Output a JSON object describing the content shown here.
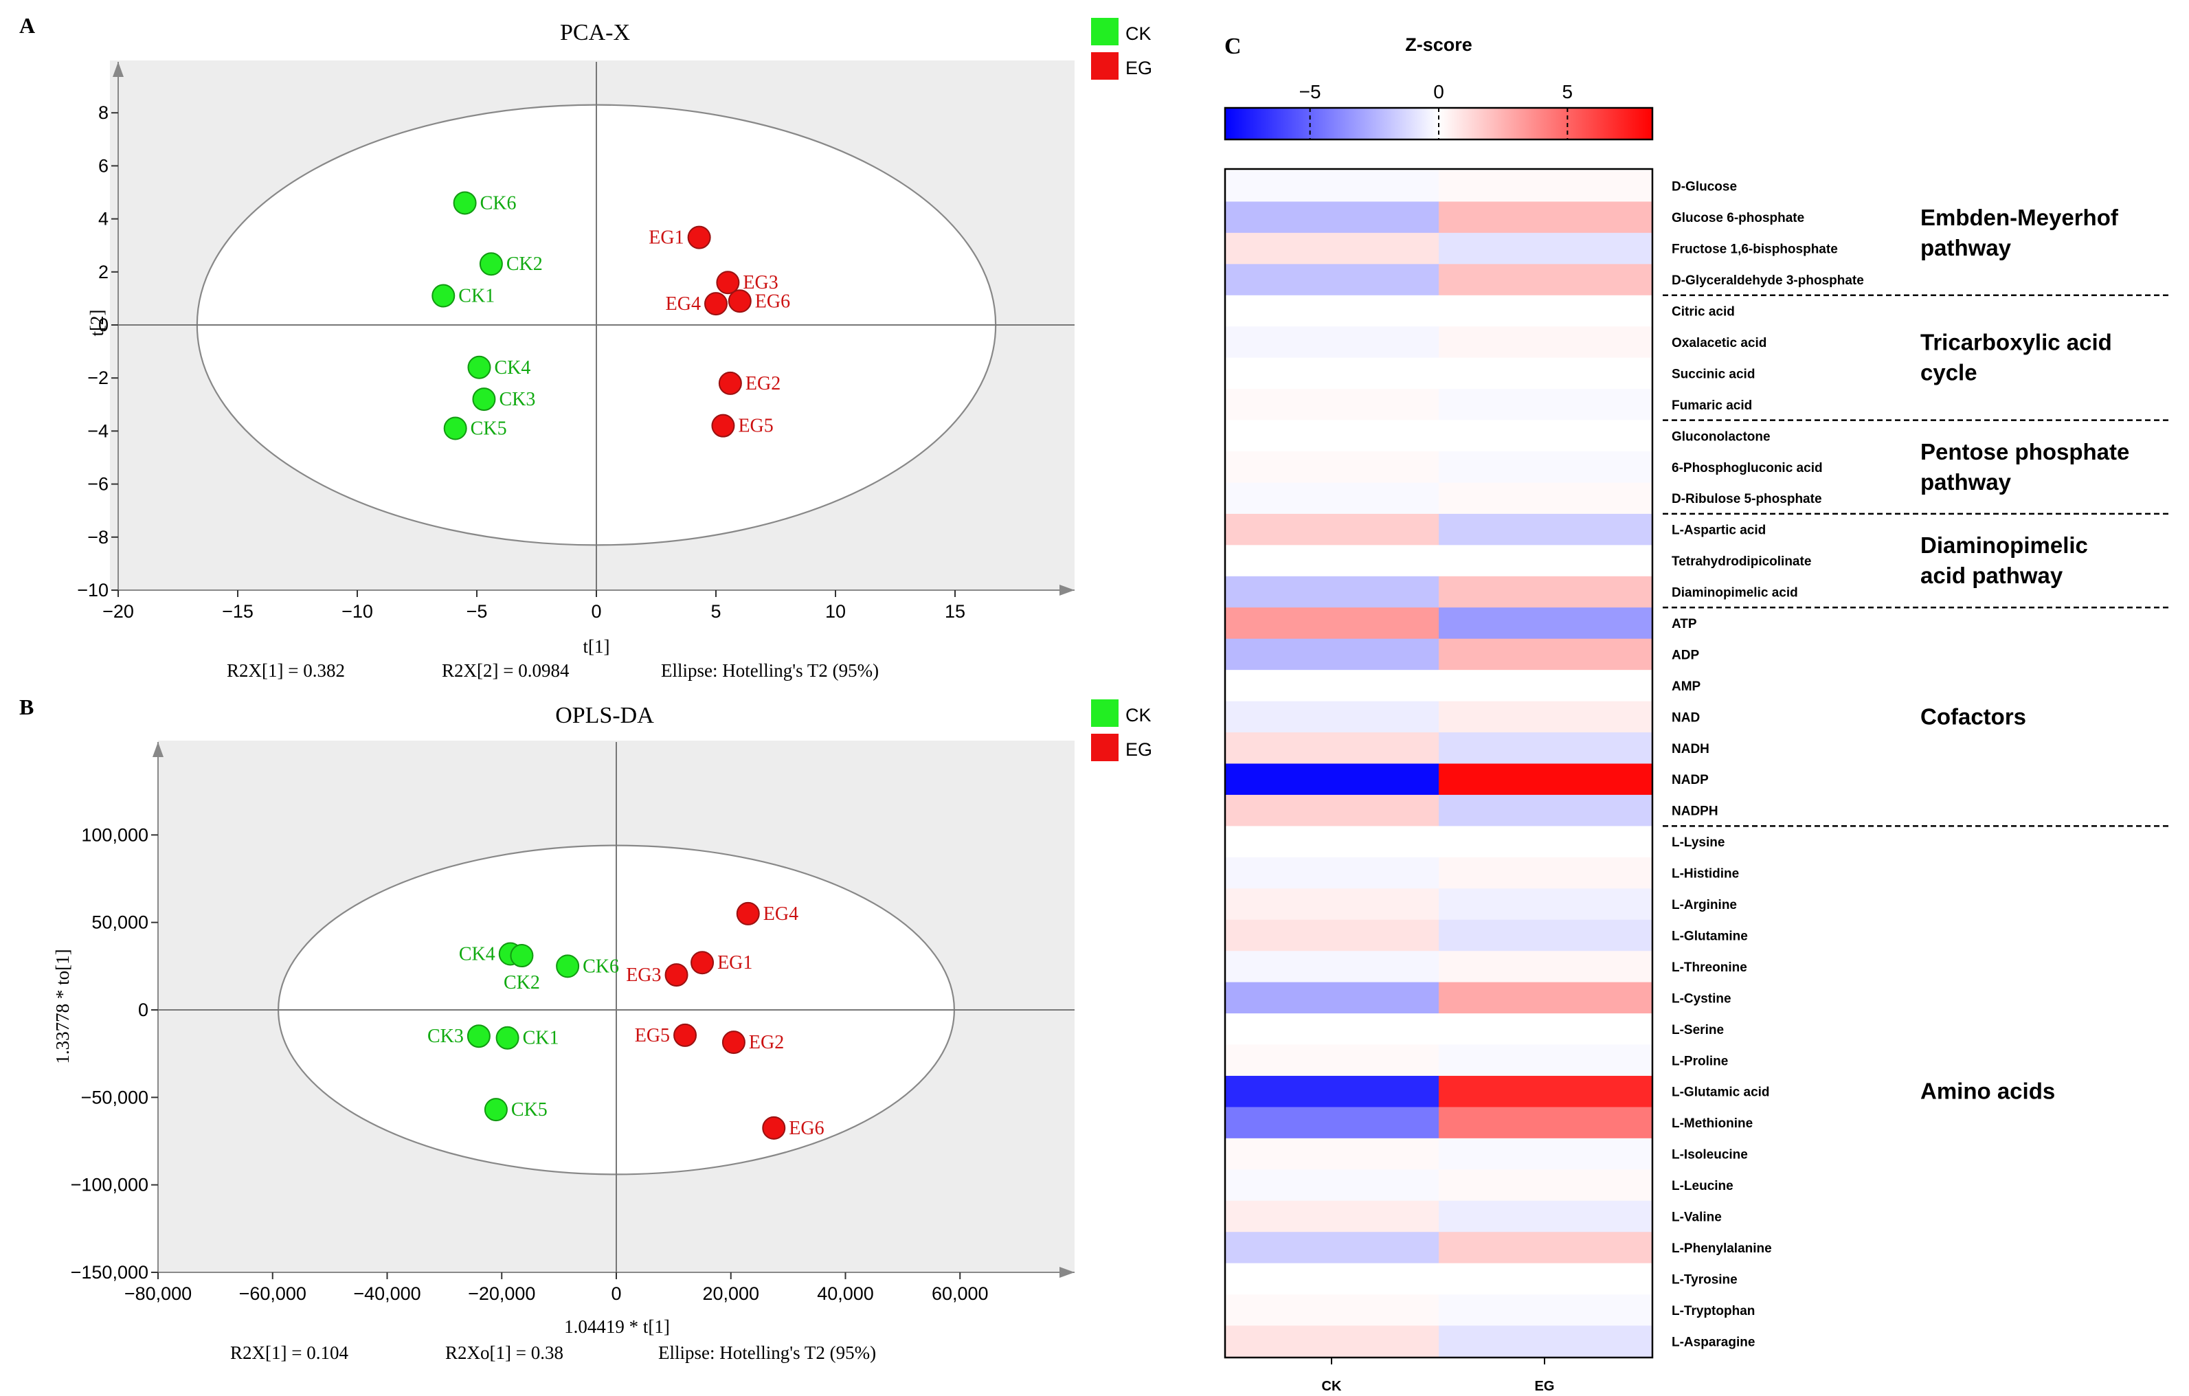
{
  "colors": {
    "ck": "#22ee22",
    "eg": "#ee1111",
    "ck_label": "#11aa11",
    "eg_label": "#cc1111",
    "plot_bg": "#ededed",
    "heat_low": "#0000ff",
    "heat_mid": "#ffffff",
    "heat_high": "#ff0000"
  },
  "chart_data": [
    {
      "panel": "A",
      "type": "scatter",
      "title": "PCA-X",
      "xlabel": "t[1]",
      "ylabel": "t[2]",
      "xlim": [
        -20,
        20
      ],
      "ylim": [
        -10,
        10
      ],
      "xticks": [
        -20,
        -15,
        -10,
        -5,
        0,
        5,
        10,
        15
      ],
      "yticks": [
        -10,
        -8,
        -6,
        -4,
        -2,
        0,
        2,
        4,
        6,
        8
      ],
      "tick_labels_x": [
        "−20",
        "−15",
        "−10",
        "−5",
        "0",
        "5",
        "10",
        "15"
      ],
      "tick_labels_y": [
        "−10",
        "−8",
        "−6",
        "−4",
        "−2",
        "0",
        "2",
        "4",
        "6",
        "8"
      ],
      "ellipse": {
        "cx": 0,
        "cy": 0,
        "rx": 16.7,
        "ry": 8.3
      },
      "legend": [
        "CK",
        "EG"
      ],
      "stats": [
        "R2X[1] = 0.382",
        "R2X[2] = 0.0984",
        "Ellipse: Hotelling's T2 (95%)"
      ],
      "points": [
        {
          "label": "CK6",
          "group": "CK",
          "x": -5.5,
          "y": 4.6,
          "anchor": "right"
        },
        {
          "label": "CK2",
          "group": "CK",
          "x": -4.4,
          "y": 2.3,
          "anchor": "right"
        },
        {
          "label": "CK1",
          "group": "CK",
          "x": -6.4,
          "y": 1.1,
          "anchor": "right"
        },
        {
          "label": "CK4",
          "group": "CK",
          "x": -4.9,
          "y": -1.6,
          "anchor": "right"
        },
        {
          "label": "CK3",
          "group": "CK",
          "x": -4.7,
          "y": -2.8,
          "anchor": "right"
        },
        {
          "label": "CK5",
          "group": "CK",
          "x": -5.9,
          "y": -3.9,
          "anchor": "right"
        },
        {
          "label": "EG1",
          "group": "EG",
          "x": 4.3,
          "y": 3.3,
          "anchor": "left"
        },
        {
          "label": "EG3",
          "group": "EG",
          "x": 5.5,
          "y": 1.6,
          "anchor": "right"
        },
        {
          "label": "EG4",
          "group": "EG",
          "x": 5.0,
          "y": 0.8,
          "anchor": "left"
        },
        {
          "label": "EG6",
          "group": "EG",
          "x": 6.0,
          "y": 0.9,
          "anchor": "right"
        },
        {
          "label": "EG2",
          "group": "EG",
          "x": 5.6,
          "y": -2.2,
          "anchor": "right"
        },
        {
          "label": "EG5",
          "group": "EG",
          "x": 5.3,
          "y": -3.8,
          "anchor": "right"
        }
      ]
    },
    {
      "panel": "B",
      "type": "scatter",
      "title": "OPLS-DA",
      "xlabel": "1.04419 * t[1]",
      "ylabel": "1.33778 * to[1]",
      "xlim": [
        -80000,
        80000
      ],
      "ylim": [
        -150000,
        150000
      ],
      "xticks": [
        -80000,
        -60000,
        -40000,
        -20000,
        0,
        20000,
        40000,
        60000
      ],
      "yticks": [
        -150000,
        -100000,
        -50000,
        0,
        50000,
        100000
      ],
      "tick_labels_x": [
        "−80,000",
        "−60,000",
        "−40,000",
        "−20,000",
        "0",
        "20,000",
        "40,000",
        "60,000"
      ],
      "tick_labels_y": [
        "−150,000",
        "−100,000",
        "−50,000",
        "0",
        "50,000",
        "100,000"
      ],
      "ellipse": {
        "cx": 0,
        "cy": 0,
        "rx": 59000,
        "ry": 94000
      },
      "legend": [
        "CK",
        "EG"
      ],
      "stats": [
        "R2X[1] = 0.104",
        "R2Xo[1] = 0.38",
        "Ellipse: Hotelling's T2 (95%)"
      ],
      "points": [
        {
          "label": "CK4",
          "group": "CK",
          "x": -18500,
          "y": 32000,
          "anchor": "left"
        },
        {
          "label": "CK2",
          "group": "CK",
          "x": -16500,
          "y": 31000,
          "anchor": "below"
        },
        {
          "label": "CK6",
          "group": "CK",
          "x": -8500,
          "y": 25000,
          "anchor": "right"
        },
        {
          "label": "CK3",
          "group": "CK",
          "x": -24000,
          "y": -15000,
          "anchor": "left"
        },
        {
          "label": "CK1",
          "group": "CK",
          "x": -19000,
          "y": -16000,
          "anchor": "right"
        },
        {
          "label": "CK5",
          "group": "CK",
          "x": -21000,
          "y": -57000,
          "anchor": "right"
        },
        {
          "label": "EG4",
          "group": "EG",
          "x": 23000,
          "y": 55000,
          "anchor": "right"
        },
        {
          "label": "EG1",
          "group": "EG",
          "x": 15000,
          "y": 27000,
          "anchor": "right"
        },
        {
          "label": "EG3",
          "group": "EG",
          "x": 10500,
          "y": 20000,
          "anchor": "left"
        },
        {
          "label": "EG5",
          "group": "EG",
          "x": 12000,
          "y": -14500,
          "anchor": "left"
        },
        {
          "label": "EG2",
          "group": "EG",
          "x": 20500,
          "y": -18500,
          "anchor": "right"
        },
        {
          "label": "EG6",
          "group": "EG",
          "x": 27500,
          "y": -67500,
          "anchor": "right"
        }
      ]
    },
    {
      "panel": "C",
      "type": "heatmap",
      "colorbar_title": "Z-score",
      "colorbar_range": [
        -8.3,
        8.3
      ],
      "colorbar_ticks": [
        -5,
        0,
        5
      ],
      "colorbar_tick_labels": [
        "−5",
        "0",
        "5"
      ],
      "columns": [
        "CK",
        "EG"
      ],
      "rows": [
        {
          "name": "D-Glucose",
          "values": [
            -0.2,
            0.2
          ]
        },
        {
          "name": "Glucose 6-phosphate",
          "values": [
            -2.2,
            2.2
          ]
        },
        {
          "name": "Fructose 1,6-bisphosphate",
          "values": [
            0.9,
            -0.9
          ]
        },
        {
          "name": "D-Glyceraldehyde 3-phosphate",
          "values": [
            -2.0,
            2.0
          ]
        },
        {
          "name": "Citric acid",
          "values": [
            0.0,
            0.0
          ]
        },
        {
          "name": "Oxalacetic acid",
          "values": [
            -0.3,
            0.3
          ]
        },
        {
          "name": "Succinic acid",
          "values": [
            0.0,
            0.0
          ]
        },
        {
          "name": "Fumaric acid",
          "values": [
            0.2,
            -0.2
          ]
        },
        {
          "name": "Gluconolactone",
          "values": [
            0.0,
            0.0
          ]
        },
        {
          "name": "6-Phosphogluconic acid",
          "values": [
            0.2,
            -0.2
          ]
        },
        {
          "name": "D-Ribulose 5-phosphate",
          "values": [
            -0.2,
            0.2
          ]
        },
        {
          "name": "L-Aspartic acid",
          "values": [
            1.6,
            -1.6
          ]
        },
        {
          "name": "Tetrahydrodipicolinate",
          "values": [
            0.0,
            0.0
          ]
        },
        {
          "name": "Diaminopimelic acid",
          "values": [
            -2.0,
            2.0
          ]
        },
        {
          "name": "ATP",
          "values": [
            3.3,
            -3.3
          ]
        },
        {
          "name": "ADP",
          "values": [
            -2.3,
            2.3
          ]
        },
        {
          "name": "AMP",
          "values": [
            0.0,
            0.0
          ]
        },
        {
          "name": "NAD",
          "values": [
            -0.6,
            0.6
          ]
        },
        {
          "name": "NADH",
          "values": [
            1.1,
            -1.1
          ]
        },
        {
          "name": "NADP",
          "values": [
            -8.0,
            8.0
          ]
        },
        {
          "name": "NADPH",
          "values": [
            1.5,
            -1.5
          ]
        },
        {
          "name": "L-Lysine",
          "values": [
            0.0,
            0.0
          ]
        },
        {
          "name": "L-Histidine",
          "values": [
            -0.3,
            0.3
          ]
        },
        {
          "name": "L-Arginine",
          "values": [
            0.5,
            -0.5
          ]
        },
        {
          "name": "L-Glutamine",
          "values": [
            0.9,
            -0.9
          ]
        },
        {
          "name": "L-Threonine",
          "values": [
            -0.3,
            0.3
          ]
        },
        {
          "name": "L-Cystine",
          "values": [
            -2.8,
            2.8
          ]
        },
        {
          "name": "L-Serine",
          "values": [
            0.0,
            0.0
          ]
        },
        {
          "name": "L-Proline",
          "values": [
            0.2,
            -0.2
          ]
        },
        {
          "name": "L-Glutamic acid",
          "values": [
            -7.0,
            7.0
          ]
        },
        {
          "name": "L-Methionine",
          "values": [
            -4.4,
            4.4
          ]
        },
        {
          "name": "L-Isoleucine",
          "values": [
            0.2,
            -0.2
          ]
        },
        {
          "name": "L-Leucine",
          "values": [
            -0.2,
            0.2
          ]
        },
        {
          "name": "L-Valine",
          "values": [
            0.6,
            -0.6
          ]
        },
        {
          "name": "L-Phenylalanine",
          "values": [
            -1.6,
            1.6
          ]
        },
        {
          "name": "L-Tyrosine",
          "values": [
            0.0,
            0.0
          ]
        },
        {
          "name": "L-Tryptophan",
          "values": [
            0.2,
            -0.2
          ]
        },
        {
          "name": "L-Asparagine",
          "values": [
            0.9,
            -0.9
          ]
        }
      ],
      "groups": [
        {
          "label_lines": [
            "Embden-Meyerhof",
            "pathway"
          ],
          "start": 0,
          "end": 3
        },
        {
          "label_lines": [
            "Tricarboxylic acid",
            "cycle"
          ],
          "start": 4,
          "end": 7
        },
        {
          "label_lines": [
            "Pentose phosphate",
            "pathway"
          ],
          "start": 8,
          "end": 10
        },
        {
          "label_lines": [
            "Diaminopimelic",
            "acid pathway"
          ],
          "start": 11,
          "end": 13
        },
        {
          "label_lines": [
            "Cofactors"
          ],
          "start": 14,
          "end": 20
        },
        {
          "label_lines": [
            "Amino acids"
          ],
          "start": 21,
          "end": 37
        }
      ]
    }
  ]
}
